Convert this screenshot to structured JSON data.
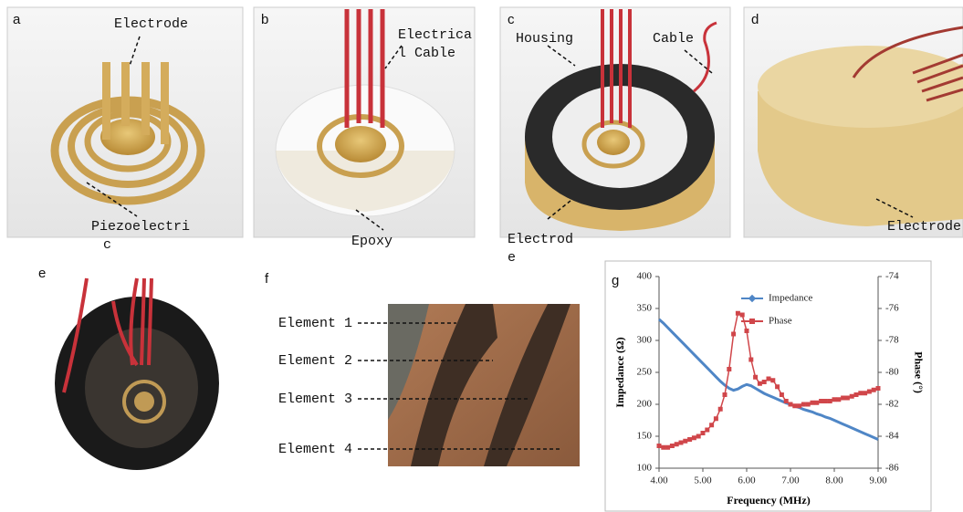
{
  "panels": {
    "labels": [
      "a",
      "b",
      "c",
      "d",
      "e",
      "f",
      "g"
    ],
    "a": {
      "top": "Electrode",
      "bottom": [
        "Piezoelectri",
        "c"
      ]
    },
    "b": {
      "top": [
        "Electrica",
        "l Cable"
      ],
      "bottom": "Epoxy"
    },
    "c": {
      "left": "Housing",
      "right": "Cable",
      "bottom": [
        "Electrod",
        "e"
      ]
    },
    "d": {
      "bottom": "Electrode"
    },
    "f": {
      "elements": [
        "Element 1",
        "Element 2",
        "Element 3",
        "Element 4"
      ]
    }
  },
  "chart_data": {
    "type": "line",
    "x_label": "Frequency (MHz)",
    "y_label": "Impedance (Ω)",
    "y2_label": "Phase (°)",
    "x": [
      4,
      4.1,
      4.2,
      4.3,
      4.4,
      4.5,
      4.6,
      4.7,
      4.8,
      4.9,
      5,
      5.1,
      5.2,
      5.3,
      5.4,
      5.5,
      5.6,
      5.7,
      5.8,
      5.9,
      6,
      6.1,
      6.2,
      6.3,
      6.4,
      6.5,
      6.6,
      6.7,
      6.8,
      6.9,
      7,
      7.1,
      7.2,
      7.3,
      7.4,
      7.5,
      7.6,
      7.7,
      7.8,
      7.9,
      8,
      8.1,
      8.2,
      8.3,
      8.4,
      8.5,
      8.6,
      8.7,
      8.8,
      8.9,
      9
    ],
    "series": [
      {
        "name": "Impedance",
        "color": "#4f86c6",
        "values": [
          333,
          327,
          320,
          313,
          306,
          299,
          292,
          285,
          278,
          271,
          264,
          257,
          250,
          243,
          236,
          230,
          225,
          222,
          224,
          228,
          231,
          229,
          225,
          221,
          217,
          214,
          211,
          208,
          205,
          202,
          200,
          197,
          195,
          192,
          190,
          188,
          185,
          183,
          180,
          178,
          175,
          172,
          169,
          166,
          163,
          160,
          157,
          154,
          151,
          148,
          145
        ]
      },
      {
        "name": "Phase",
        "color": "#d0464a",
        "axis": "y2",
        "values": [
          -84.6,
          -84.7,
          -84.7,
          -84.6,
          -84.5,
          -84.4,
          -84.3,
          -84.2,
          -84.1,
          -84.0,
          -83.8,
          -83.6,
          -83.3,
          -82.9,
          -82.3,
          -81.4,
          -79.8,
          -77.6,
          -76.3,
          -76.4,
          -77.4,
          -79.2,
          -80.3,
          -80.7,
          -80.6,
          -80.4,
          -80.5,
          -80.9,
          -81.4,
          -81.8,
          -82.0,
          -82.1,
          -82.1,
          -82.0,
          -82.0,
          -81.9,
          -81.9,
          -81.8,
          -81.8,
          -81.8,
          -81.7,
          -81.7,
          -81.6,
          -81.6,
          -81.5,
          -81.4,
          -81.3,
          -81.3,
          -81.2,
          -81.1,
          -81.0
        ]
      }
    ],
    "xlim": [
      4,
      9
    ],
    "xticks": [
      {
        "value": 4,
        "label": "4.00"
      },
      {
        "value": 5,
        "label": "5.00"
      },
      {
        "value": 6,
        "label": "6.00"
      },
      {
        "value": 7,
        "label": "7.00"
      },
      {
        "value": 8,
        "label": "8.00"
      },
      {
        "value": 9,
        "label": "9.00"
      }
    ],
    "ylim": [
      100,
      400
    ],
    "yticks": [
      100,
      150,
      200,
      250,
      300,
      350,
      400
    ],
    "y2lim": [
      -86,
      -74
    ],
    "y2ticks": [
      -86,
      -84,
      -82,
      -80,
      -78,
      -76,
      -74
    ],
    "legend": "top"
  }
}
